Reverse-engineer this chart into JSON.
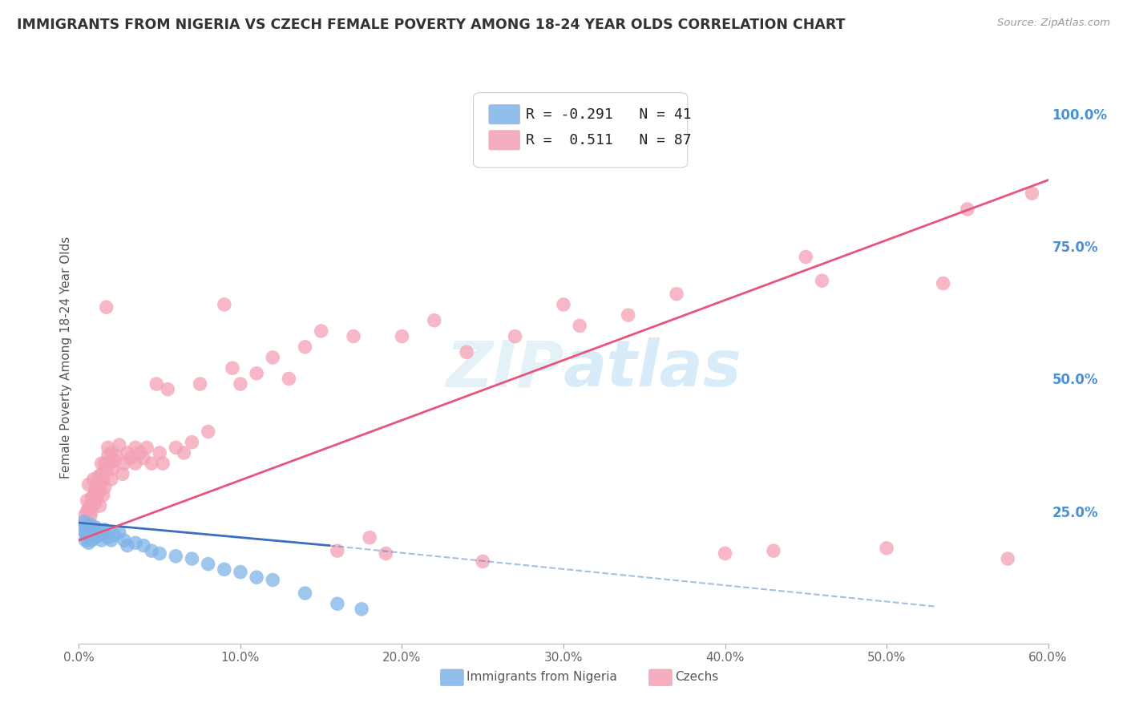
{
  "title": "IMMIGRANTS FROM NIGERIA VS CZECH FEMALE POVERTY AMONG 18-24 YEAR OLDS CORRELATION CHART",
  "source": "Source: ZipAtlas.com",
  "ylabel": "Female Poverty Among 18-24 Year Olds",
  "xlim": [
    0.0,
    0.6
  ],
  "ylim": [
    0.0,
    1.08
  ],
  "xlabel_vals": [
    0.0,
    0.1,
    0.2,
    0.3,
    0.4,
    0.5,
    0.6
  ],
  "xlabel_labels": [
    "0.0%",
    "10.0%",
    "20.0%",
    "30.0%",
    "40.0%",
    "50.0%",
    "60.0%"
  ],
  "ylabel_vals": [
    0.25,
    0.5,
    0.75,
    1.0
  ],
  "ylabel_labels": [
    "25.0%",
    "50.0%",
    "75.0%",
    "100.0%"
  ],
  "R_nigeria": -0.291,
  "N_nigeria": 41,
  "R_czech": 0.511,
  "N_czech": 87,
  "nigeria_color": "#7fb3e8",
  "czech_color": "#f4a0b5",
  "nigeria_line_color": "#3a6fbf",
  "czech_line_color": "#e8547a",
  "legend_nigeria_label": "Immigrants from Nigeria",
  "legend_czech_label": "Czechs",
  "background_color": "#ffffff",
  "title_color": "#333333",
  "right_tick_color": "#4a90d9",
  "grid_color": "#cccccc",
  "nigeria_scatter": [
    [
      0.002,
      0.215
    ],
    [
      0.003,
      0.23
    ],
    [
      0.004,
      0.195
    ],
    [
      0.004,
      0.21
    ],
    [
      0.005,
      0.22
    ],
    [
      0.005,
      0.2
    ],
    [
      0.006,
      0.215
    ],
    [
      0.006,
      0.19
    ],
    [
      0.007,
      0.225
    ],
    [
      0.007,
      0.205
    ],
    [
      0.008,
      0.215
    ],
    [
      0.008,
      0.195
    ],
    [
      0.009,
      0.21
    ],
    [
      0.01,
      0.22
    ],
    [
      0.01,
      0.2
    ],
    [
      0.011,
      0.21
    ],
    [
      0.012,
      0.215
    ],
    [
      0.013,
      0.205
    ],
    [
      0.014,
      0.195
    ],
    [
      0.015,
      0.21
    ],
    [
      0.016,
      0.215
    ],
    [
      0.018,
      0.2
    ],
    [
      0.02,
      0.195
    ],
    [
      0.022,
      0.205
    ],
    [
      0.025,
      0.21
    ],
    [
      0.028,
      0.195
    ],
    [
      0.03,
      0.185
    ],
    [
      0.035,
      0.19
    ],
    [
      0.04,
      0.185
    ],
    [
      0.045,
      0.175
    ],
    [
      0.05,
      0.17
    ],
    [
      0.06,
      0.165
    ],
    [
      0.07,
      0.16
    ],
    [
      0.08,
      0.15
    ],
    [
      0.09,
      0.14
    ],
    [
      0.1,
      0.135
    ],
    [
      0.11,
      0.125
    ],
    [
      0.12,
      0.12
    ],
    [
      0.14,
      0.095
    ],
    [
      0.16,
      0.075
    ],
    [
      0.175,
      0.065
    ]
  ],
  "czech_scatter": [
    [
      0.002,
      0.215
    ],
    [
      0.003,
      0.24
    ],
    [
      0.004,
      0.225
    ],
    [
      0.005,
      0.25
    ],
    [
      0.005,
      0.27
    ],
    [
      0.006,
      0.255
    ],
    [
      0.006,
      0.3
    ],
    [
      0.007,
      0.26
    ],
    [
      0.007,
      0.24
    ],
    [
      0.008,
      0.275
    ],
    [
      0.008,
      0.25
    ],
    [
      0.009,
      0.28
    ],
    [
      0.009,
      0.31
    ],
    [
      0.01,
      0.265
    ],
    [
      0.01,
      0.29
    ],
    [
      0.011,
      0.275
    ],
    [
      0.011,
      0.3
    ],
    [
      0.012,
      0.315
    ],
    [
      0.012,
      0.285
    ],
    [
      0.013,
      0.295
    ],
    [
      0.013,
      0.26
    ],
    [
      0.014,
      0.32
    ],
    [
      0.014,
      0.34
    ],
    [
      0.015,
      0.28
    ],
    [
      0.015,
      0.31
    ],
    [
      0.016,
      0.295
    ],
    [
      0.016,
      0.34
    ],
    [
      0.017,
      0.325
    ],
    [
      0.017,
      0.635
    ],
    [
      0.018,
      0.37
    ],
    [
      0.018,
      0.355
    ],
    [
      0.019,
      0.34
    ],
    [
      0.02,
      0.36
    ],
    [
      0.02,
      0.31
    ],
    [
      0.021,
      0.33
    ],
    [
      0.022,
      0.345
    ],
    [
      0.023,
      0.355
    ],
    [
      0.025,
      0.375
    ],
    [
      0.027,
      0.32
    ],
    [
      0.028,
      0.34
    ],
    [
      0.03,
      0.36
    ],
    [
      0.032,
      0.35
    ],
    [
      0.035,
      0.37
    ],
    [
      0.035,
      0.34
    ],
    [
      0.038,
      0.36
    ],
    [
      0.04,
      0.35
    ],
    [
      0.042,
      0.37
    ],
    [
      0.045,
      0.34
    ],
    [
      0.048,
      0.49
    ],
    [
      0.05,
      0.36
    ],
    [
      0.052,
      0.34
    ],
    [
      0.055,
      0.48
    ],
    [
      0.06,
      0.37
    ],
    [
      0.065,
      0.36
    ],
    [
      0.07,
      0.38
    ],
    [
      0.075,
      0.49
    ],
    [
      0.08,
      0.4
    ],
    [
      0.09,
      0.64
    ],
    [
      0.095,
      0.52
    ],
    [
      0.1,
      0.49
    ],
    [
      0.11,
      0.51
    ],
    [
      0.12,
      0.54
    ],
    [
      0.13,
      0.5
    ],
    [
      0.14,
      0.56
    ],
    [
      0.15,
      0.59
    ],
    [
      0.16,
      0.175
    ],
    [
      0.17,
      0.58
    ],
    [
      0.18,
      0.2
    ],
    [
      0.19,
      0.17
    ],
    [
      0.2,
      0.58
    ],
    [
      0.22,
      0.61
    ],
    [
      0.24,
      0.55
    ],
    [
      0.25,
      0.155
    ],
    [
      0.27,
      0.58
    ],
    [
      0.3,
      0.64
    ],
    [
      0.31,
      0.6
    ],
    [
      0.34,
      0.62
    ],
    [
      0.37,
      0.66
    ],
    [
      0.4,
      0.17
    ],
    [
      0.43,
      0.175
    ],
    [
      0.45,
      0.73
    ],
    [
      0.46,
      0.685
    ],
    [
      0.5,
      0.18
    ],
    [
      0.535,
      0.68
    ],
    [
      0.55,
      0.82
    ],
    [
      0.575,
      0.16
    ],
    [
      0.59,
      0.85
    ]
  ],
  "nigeria_line_solid": [
    [
      0.0,
      0.228
    ],
    [
      0.155,
      0.185
    ]
  ],
  "nigeria_line_dashed": [
    [
      0.155,
      0.185
    ],
    [
      0.53,
      0.07
    ]
  ],
  "czech_line": [
    [
      0.0,
      0.195
    ],
    [
      0.6,
      0.875
    ]
  ]
}
